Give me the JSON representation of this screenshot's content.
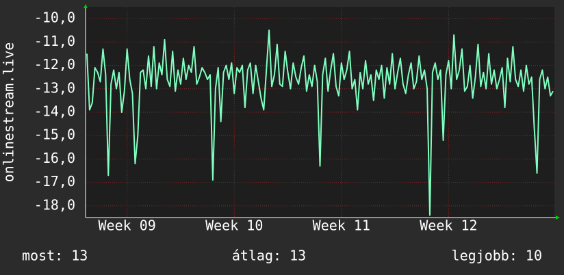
{
  "chart_data": {
    "type": "line",
    "ylabel": "onlinestream.live",
    "categories": [
      null,
      null,
      null,
      null,
      null,
      null,
      null,
      null,
      null,
      null,
      null,
      null,
      null,
      null,
      null,
      "Week 09",
      null,
      null,
      null,
      null,
      null,
      null,
      null,
      null,
      null,
      null,
      null,
      null,
      null,
      null,
      null,
      null,
      null,
      null,
      null,
      null,
      null,
      null,
      null,
      null,
      null,
      null,
      null,
      null,
      null,
      null,
      null,
      null,
      null,
      null,
      null,
      null,
      null,
      null,
      null,
      "Week 10",
      null,
      null,
      null,
      null,
      null,
      null,
      null,
      null,
      null,
      null,
      null,
      null,
      null,
      null,
      null,
      null,
      null,
      null,
      null,
      null,
      null,
      null,
      null,
      null,
      null,
      null,
      null,
      null,
      null,
      null,
      null,
      null,
      null,
      null,
      null,
      null,
      null,
      null,
      null,
      "Week 11",
      null,
      null,
      null,
      null,
      null,
      null,
      null,
      null,
      null,
      null,
      null,
      null,
      null,
      null,
      null,
      null,
      null,
      null,
      null,
      null,
      null,
      null,
      null,
      null,
      null,
      null,
      null,
      null,
      null,
      null,
      null,
      null,
      null,
      null,
      null,
      null,
      null,
      null,
      null,
      "Week 12",
      null,
      null,
      null,
      null,
      null,
      null,
      null,
      null,
      null,
      null,
      null,
      null,
      null,
      null,
      null,
      null,
      null,
      null,
      null,
      null,
      null,
      null,
      null,
      null,
      null,
      null,
      null,
      null,
      null,
      null,
      null,
      null,
      null,
      null,
      null,
      null,
      null,
      null,
      null
    ],
    "series": [
      {
        "color": "#80ffc0",
        "values": [
          -11.5,
          -13.9,
          -13.6,
          -12.1,
          -12.3,
          -12.7,
          -11.3,
          -12.4,
          -16.7,
          -12.8,
          -12.2,
          -13.0,
          -12.3,
          -14.0,
          -13.1,
          -11.3,
          -12.6,
          -13.2,
          -16.2,
          -15.0,
          -12.3,
          -12.2,
          -13.0,
          -11.6,
          -12.9,
          -11.2,
          -13.0,
          -11.9,
          -12.4,
          -10.9,
          -12.6,
          -12.9,
          -11.4,
          -13.1,
          -12.2,
          -12.8,
          -11.7,
          -12.6,
          -12.0,
          -12.3,
          -11.2,
          -12.8,
          -12.5,
          -12.1,
          -12.3,
          -12.6,
          -12.4,
          -16.9,
          -13.0,
          -12.1,
          -14.4,
          -12.3,
          -12.0,
          -12.6,
          -11.9,
          -13.2,
          -12.1,
          -12.3,
          -12.0,
          -13.8,
          -12.2,
          -11.9,
          -13.2,
          -12.0,
          -12.7,
          -13.4,
          -13.9,
          -12.2,
          -10.5,
          -12.9,
          -12.4,
          -11.1,
          -12.8,
          -12.9,
          -11.4,
          -12.3,
          -13.0,
          -11.9,
          -12.5,
          -12.8,
          -12.1,
          -11.6,
          -13.1,
          -12.4,
          -12.9,
          -12.0,
          -12.7,
          -16.3,
          -12.4,
          -11.7,
          -13.1,
          -12.2,
          -11.5,
          -12.9,
          -13.3,
          -11.9,
          -12.6,
          -12.2,
          -11.4,
          -13.0,
          -12.6,
          -13.9,
          -12.3,
          -13.0,
          -11.8,
          -12.8,
          -12.4,
          -13.5,
          -12.2,
          -12.6,
          -12.0,
          -13.4,
          -12.1,
          -12.8,
          -11.5,
          -13.0,
          -12.3,
          -11.7,
          -12.8,
          -13.2,
          -12.4,
          -11.9,
          -13.0,
          -12.7,
          -11.6,
          -12.6,
          -12.2,
          -13.0,
          -18.4,
          -12.3,
          -11.9,
          -12.6,
          -12.2,
          -15.2,
          -12.4,
          -11.8,
          -13.0,
          -10.7,
          -12.6,
          -12.2,
          -11.3,
          -13.1,
          -12.9,
          -12.0,
          -13.4,
          -12.5,
          -11.1,
          -12.9,
          -12.3,
          -13.0,
          -11.5,
          -12.8,
          -12.2,
          -13.0,
          -12.6,
          -12.1,
          -13.8,
          -11.7,
          -12.7,
          -11.2,
          -12.6,
          -12.9,
          -12.2,
          -13.1,
          -12.0,
          -12.8,
          -12.5,
          -14.7,
          -16.6,
          -12.6,
          -12.2,
          -13.0,
          -12.5,
          -13.3,
          -13.1
        ]
      }
    ],
    "ylim": [
      -18.5,
      -9.5
    ],
    "yticks": [
      {
        "value": -10,
        "label": "-10,0"
      },
      {
        "value": -11,
        "label": "-11,0"
      },
      {
        "value": -12,
        "label": "-12,0"
      },
      {
        "value": -13,
        "label": "-13,0"
      },
      {
        "value": -14,
        "label": "-14,0"
      },
      {
        "value": -15,
        "label": "-15,0"
      },
      {
        "value": -16,
        "label": "-16,0"
      },
      {
        "value": -17,
        "label": "-17,0"
      },
      {
        "value": -18,
        "label": "-18,0"
      }
    ],
    "grid": true,
    "stats": [
      "most: 13",
      "átlag: 13",
      "legjobb: 10"
    ]
  }
}
